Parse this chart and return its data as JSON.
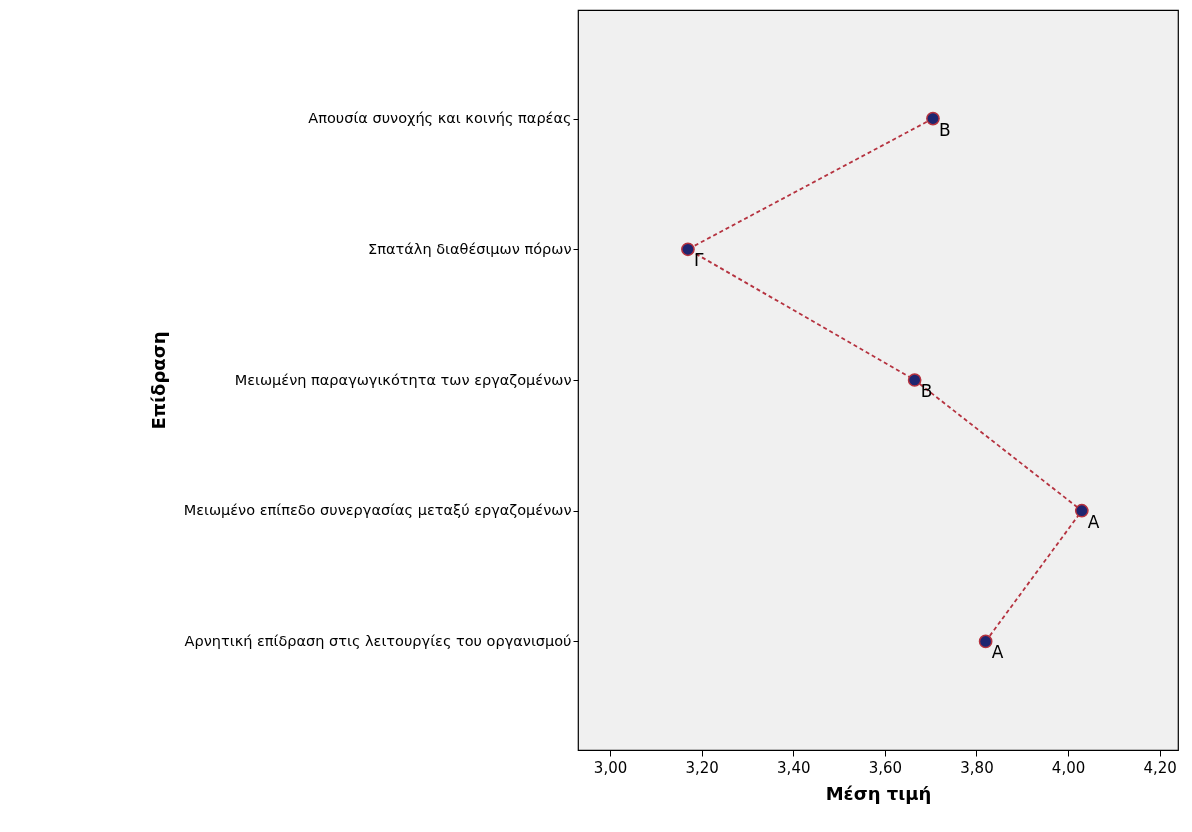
{
  "chart_data": {
    "type": "line",
    "orientation": "horizontal",
    "xlabel": "Μέση τιμή",
    "ylabel": "Επίδραση",
    "categories": [
      "Απουσία συνοχής και κοινής παρέας",
      "Σπατάλη διαθέσιμων πόρων",
      "Μειωμένη παραγωγικότητα των εργαζομένων",
      "Μειωμένο επίπεδο συνεργασίας μεταξύ εργαζομένων",
      "Αρνητική επίδραση στις λειτουργίες του οργανισμού"
    ],
    "series": [
      {
        "color": "#b5323f",
        "values": [
          3.705,
          3.17,
          3.665,
          4.03,
          3.82
        ]
      }
    ],
    "xlim": [
      2.93,
      4.24
    ],
    "xticks": [
      {
        "value": 3,
        "label": "3,00"
      },
      {
        "value": 3.2,
        "label": "3,20"
      },
      {
        "value": 3.4,
        "label": "3,40"
      },
      {
        "value": 3.6,
        "label": "3,60"
      },
      {
        "value": 3.8,
        "label": "3,80"
      },
      {
        "value": 4,
        "label": "4,00"
      },
      {
        "value": 4.2,
        "label": "4,20"
      }
    ],
    "annotations": [
      {
        "text": "Β",
        "x": 3.705,
        "y": "Απουσία συνοχής και κοινής παρέας"
      },
      {
        "text": "Γ",
        "x": 3.17,
        "y": "Σπατάλη διαθέσιμων πόρων"
      },
      {
        "text": "Β",
        "x": 3.665,
        "y": "Μειωμένη παραγωγικότητα των εργαζομένων"
      },
      {
        "text": "Α",
        "x": 4.03,
        "y": "Μειωμένο επίπεδο συνεργασίας μεταξύ εργαζομένων"
      },
      {
        "text": "Α",
        "x": 3.82,
        "y": "Αρνητική επίδραση στις λειτουργίες του οργανισμού"
      }
    ],
    "grid": false,
    "marker": "circle",
    "line_style": "dashed"
  }
}
